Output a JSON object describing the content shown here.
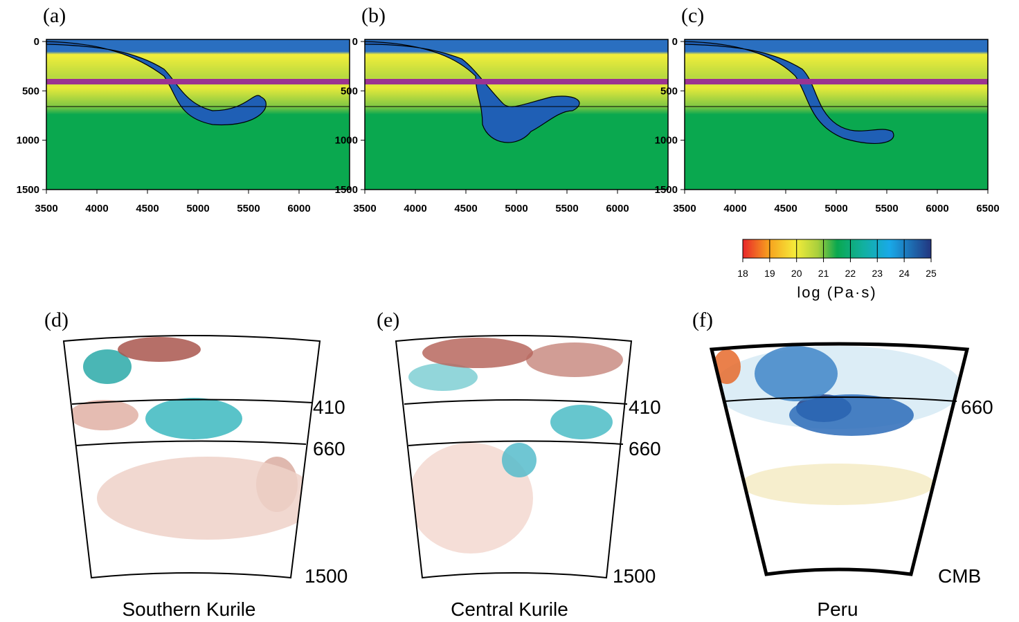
{
  "panels_top": [
    {
      "label": "(a)",
      "xlim": [
        3500,
        6500
      ],
      "ylim": [
        0,
        1500
      ],
      "xticks": [
        3500,
        4000,
        4500,
        5000,
        5500,
        6000
      ],
      "yticks": [
        0,
        500,
        1000,
        1500
      ]
    },
    {
      "label": "(b)",
      "xlim": [
        3500,
        6500
      ],
      "ylim": [
        0,
        1500
      ],
      "xticks": [
        3500,
        4000,
        4500,
        5000,
        5500,
        6000
      ],
      "yticks": [
        0,
        500,
        1000,
        1500
      ]
    },
    {
      "label": "(c)",
      "xlim": [
        3500,
        6500
      ],
      "ylim": [
        0,
        1500
      ],
      "xticks": [
        3500,
        4000,
        4500,
        5000,
        5500,
        6000,
        6500
      ],
      "yticks": [
        0,
        500,
        1000,
        1500
      ]
    }
  ],
  "colorbar": {
    "ticks": [
      18,
      19,
      20,
      21,
      22,
      23,
      24,
      25
    ],
    "label": "log (Pa·s)"
  },
  "panels_bottom": [
    {
      "label": "(d)",
      "depth_labels": [
        "410",
        "660",
        "1500"
      ],
      "title": "Southern Kurile"
    },
    {
      "label": "(e)",
      "depth_labels": [
        "410",
        "660",
        "1500"
      ],
      "title": "Central Kurile"
    },
    {
      "label": "(f)",
      "depth_labels": [
        "660",
        "CMB"
      ],
      "title": "Peru"
    }
  ]
}
